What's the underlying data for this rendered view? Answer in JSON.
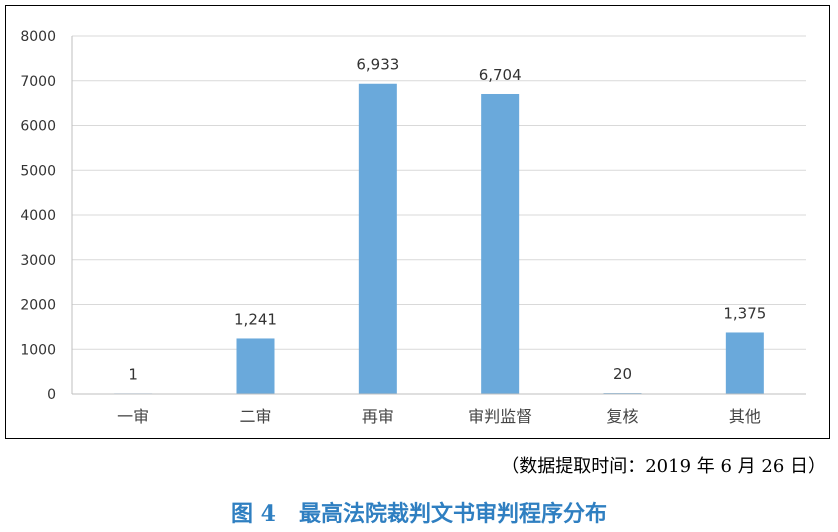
{
  "chart_data": {
    "type": "bar",
    "categories": [
      "一审",
      "二审",
      "再审",
      "审判监督",
      "复核",
      "其他"
    ],
    "values": [
      1,
      1241,
      6933,
      6704,
      20,
      1375
    ],
    "data_labels": [
      "1",
      "1,241",
      "6,933",
      "6,704",
      "20",
      "1,375"
    ],
    "ylim": [
      0,
      8000
    ],
    "yticks": [
      "0",
      "1000",
      "2000",
      "3000",
      "4000",
      "5000",
      "6000",
      "7000",
      "8000"
    ],
    "grid": true,
    "legend": "none",
    "bar_color": "#6aa9db",
    "grid_color": "#d9d9d9"
  },
  "source_note": "（数据提取时间：2019 年 6 月 26 日）",
  "caption": "图 4   最高法院裁判文书审判程序分布"
}
